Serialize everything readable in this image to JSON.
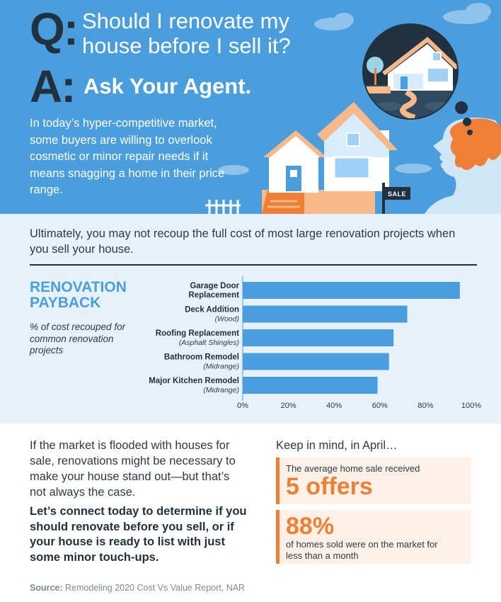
{
  "hero": {
    "q_letter": "Q:",
    "question": "Should I renovate my house before I sell it?",
    "a_letter": "A:",
    "answer": "Ask Your Agent.",
    "intro": "In today’s hyper-competitive market, some buyers are willing to overlook cosmetic or minor repair needs if it means snagging a home in their price range.",
    "sign_text": "SALE"
  },
  "chart_section": {
    "intro": "Ultimately, you may not recoup the full cost of most large renovation projects when you sell your house.",
    "title": "RENOVATION PAYBACK",
    "subtitle": "% of cost recouped for common renovation projects"
  },
  "chart_data": {
    "type": "bar",
    "orientation": "horizontal",
    "categories": [
      {
        "name": "Garage Door",
        "name2": "Replacement",
        "detail": ""
      },
      {
        "name": "Deck Addition",
        "name2": "",
        "detail": "(Wood)"
      },
      {
        "name": "Roofing Replacement",
        "name2": "",
        "detail": "(Asphalt Shingles)"
      },
      {
        "name": "Bathroom Remodel",
        "name2": "",
        "detail": "(Midrange)"
      },
      {
        "name": "Major Kitchen Remodel",
        "name2": "",
        "detail": "(Midrange)"
      }
    ],
    "values": [
      95,
      72,
      66,
      64,
      59
    ],
    "xlim": [
      0,
      100
    ],
    "x_ticks": [
      "0%",
      "20%",
      "40%",
      "60%",
      "80%",
      "100%"
    ],
    "bar_color": "#4a9ede",
    "grid": false
  },
  "bottom": {
    "market_text": "If the market is flooded with houses for sale, renovations might be necessary to make your house stand out—but that’s not always the case.",
    "cta": "Let’s connect today to determine if you should renovate before you sell, or if your house is ready to list with just some minor touch-ups.",
    "keep_in_mind": "Keep in mind, in April…",
    "stat1_label": "The average home sale received",
    "stat1_value": "5 offers",
    "stat2_value": "88%",
    "stat2_label": "of homes sold were on the market for less than a month",
    "source_label": "Source:",
    "source_text": " Remodeling 2020 Cost Vs Value Report, NAR"
  },
  "colors": {
    "sky": "#4a9ede",
    "navy": "#22313f",
    "orange": "#ee7f34",
    "light_blue_bg": "#e6f1fa",
    "peach_bg": "#fdf0e6"
  }
}
